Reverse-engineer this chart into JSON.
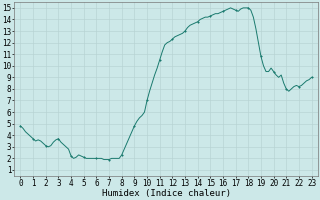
{
  "title": "",
  "xlabel": "Humidex (Indice chaleur)",
  "ylabel": "",
  "xlim": [
    -0.5,
    23.5
  ],
  "ylim": [
    0.5,
    15.5
  ],
  "yticks": [
    1,
    2,
    3,
    4,
    5,
    6,
    7,
    8,
    9,
    10,
    11,
    12,
    13,
    14,
    15
  ],
  "xticks": [
    0,
    1,
    2,
    3,
    4,
    5,
    6,
    7,
    8,
    9,
    10,
    11,
    12,
    13,
    14,
    15,
    16,
    17,
    18,
    19,
    20,
    21,
    22,
    23
  ],
  "line_color": "#1a7a6e",
  "marker_color": "#1a7a6e",
  "bg_color": "#cce8e8",
  "grid_color": "#b8d4d4",
  "x": [
    0,
    0.2,
    0.4,
    0.6,
    0.8,
    1.0,
    1.2,
    1.4,
    1.6,
    1.8,
    2.0,
    2.2,
    2.4,
    2.6,
    2.8,
    3.0,
    3.2,
    3.4,
    3.6,
    3.8,
    4.0,
    4.2,
    4.4,
    4.6,
    4.8,
    5.0,
    5.2,
    5.4,
    5.6,
    5.8,
    6.0,
    6.2,
    6.4,
    6.6,
    6.8,
    7.0,
    7.2,
    7.4,
    7.6,
    7.8,
    8.0,
    8.2,
    8.4,
    8.6,
    8.8,
    9.0,
    9.2,
    9.4,
    9.6,
    9.8,
    10.0,
    10.2,
    10.4,
    10.6,
    10.8,
    11.0,
    11.2,
    11.4,
    11.6,
    11.8,
    12.0,
    12.2,
    12.4,
    12.6,
    12.8,
    13.0,
    13.2,
    13.4,
    13.6,
    13.8,
    14.0,
    14.2,
    14.4,
    14.6,
    14.8,
    15.0,
    15.2,
    15.4,
    15.6,
    15.8,
    16.0,
    16.2,
    16.4,
    16.6,
    16.8,
    17.0,
    17.2,
    17.4,
    17.6,
    17.8,
    18.0,
    18.2,
    18.4,
    18.6,
    18.8,
    19.0,
    19.2,
    19.4,
    19.6,
    19.8,
    20.0,
    20.2,
    20.4,
    20.6,
    20.8,
    21.0,
    21.2,
    21.4,
    21.6,
    21.8,
    22.0,
    22.2,
    22.4,
    22.6,
    22.8,
    23.0
  ],
  "y": [
    4.8,
    4.6,
    4.3,
    4.1,
    3.9,
    3.7,
    3.5,
    3.6,
    3.5,
    3.3,
    3.1,
    3.0,
    3.1,
    3.4,
    3.6,
    3.7,
    3.4,
    3.2,
    3.0,
    2.8,
    2.2,
    2.0,
    2.1,
    2.3,
    2.2,
    2.1,
    2.0,
    2.0,
    2.0,
    2.0,
    2.0,
    2.0,
    2.0,
    1.9,
    1.9,
    1.9,
    2.0,
    2.0,
    2.0,
    2.0,
    2.3,
    2.8,
    3.3,
    3.8,
    4.3,
    4.8,
    5.2,
    5.5,
    5.7,
    6.0,
    7.0,
    7.8,
    8.5,
    9.2,
    9.8,
    10.5,
    11.2,
    11.8,
    12.0,
    12.1,
    12.3,
    12.5,
    12.6,
    12.7,
    12.8,
    13.0,
    13.3,
    13.5,
    13.6,
    13.7,
    13.8,
    14.0,
    14.1,
    14.2,
    14.2,
    14.3,
    14.4,
    14.5,
    14.5,
    14.6,
    14.7,
    14.8,
    14.9,
    15.0,
    14.9,
    14.8,
    14.7,
    14.9,
    15.0,
    15.0,
    15.0,
    14.8,
    14.2,
    13.2,
    12.0,
    10.8,
    10.0,
    9.5,
    9.5,
    9.8,
    9.5,
    9.2,
    9.0,
    9.2,
    8.5,
    8.0,
    7.8,
    8.0,
    8.2,
    8.3,
    8.2,
    8.3,
    8.5,
    8.7,
    8.8,
    9.0
  ],
  "marker_x": [
    0,
    1,
    2,
    3,
    4,
    5,
    6,
    7,
    8,
    9,
    10,
    11,
    12,
    13,
    14,
    15,
    16,
    17,
    18,
    19,
    20,
    21,
    22,
    23
  ],
  "marker_y": [
    4.8,
    3.7,
    3.1,
    3.7,
    2.2,
    2.1,
    2.0,
    1.9,
    2.3,
    4.8,
    7.0,
    10.5,
    12.3,
    13.0,
    13.8,
    14.3,
    14.7,
    14.8,
    15.0,
    10.8,
    9.5,
    8.0,
    8.2,
    9.0
  ],
  "linewidth": 0.7,
  "markersize": 2.0,
  "xlabel_fontsize": 6.5,
  "tick_fontsize": 5.5
}
